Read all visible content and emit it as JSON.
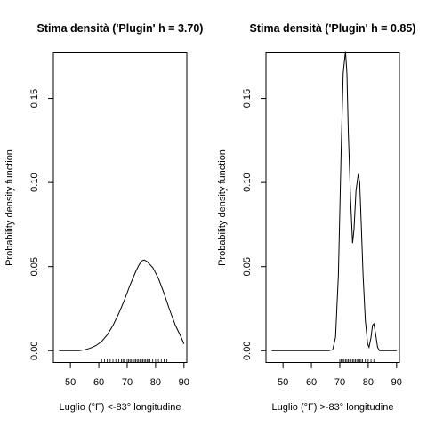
{
  "chart_data": [
    {
      "type": "line",
      "title": "Stima densità ('Plugin' h = 3.70)",
      "xlabel": "Luglio (°F) <-83° longitudine",
      "ylabel": "Probability density function",
      "xlim": [
        44,
        91
      ],
      "ylim": [
        -0.007,
        0.177
      ],
      "xticks": [
        50,
        60,
        70,
        80,
        90
      ],
      "xtick_labels": [
        "50",
        "60",
        "70",
        "80",
        "90"
      ],
      "yticks": [
        0.0,
        0.05,
        0.1,
        0.15
      ],
      "ytick_labels": [
        "0.00",
        "0.05",
        "0.10",
        "0.15"
      ],
      "grid": false,
      "series": [
        {
          "x": [
            46,
            50,
            53,
            55,
            57,
            59,
            61,
            63,
            65,
            67,
            69,
            71,
            73,
            74,
            75,
            76,
            77,
            79,
            81,
            83,
            85,
            87,
            89,
            90
          ],
          "y": [
            0.0,
            0.0,
            0.0,
            0.0005,
            0.0015,
            0.003,
            0.0055,
            0.0095,
            0.015,
            0.022,
            0.03,
            0.039,
            0.047,
            0.0505,
            0.0533,
            0.054,
            0.053,
            0.0495,
            0.043,
            0.034,
            0.024,
            0.015,
            0.008,
            0.004
          ]
        }
      ],
      "rug": [
        61,
        62,
        63,
        64,
        65,
        66,
        67,
        68,
        68.5,
        69,
        70,
        70.5,
        71,
        71.5,
        72,
        72.5,
        73,
        73.5,
        74,
        74.5,
        75,
        75.5,
        76,
        76.5,
        77,
        77.5,
        78,
        79,
        80,
        81,
        82,
        83,
        84
      ]
    },
    {
      "type": "line",
      "title": "Stima densità ('Plugin' h = 0.85)",
      "xlabel": "Luglio (°F) >-83° longitudine",
      "ylabel": "Probability density function",
      "xlim": [
        44,
        91
      ],
      "ylim": [
        -0.007,
        0.177
      ],
      "xticks": [
        50,
        60,
        70,
        80,
        90
      ],
      "xtick_labels": [
        "50",
        "60",
        "70",
        "80",
        "90"
      ],
      "yticks": [
        0.0,
        0.05,
        0.1,
        0.15
      ],
      "ytick_labels": [
        "0.00",
        "0.05",
        "0.10",
        "0.15"
      ],
      "grid": false,
      "series": [
        {
          "x": [
            46,
            60,
            66,
            67.5,
            68.5,
            69.5,
            70.5,
            71.2,
            72,
            72.5,
            73,
            73.8,
            74.5,
            75,
            75.7,
            76.5,
            77,
            77.5,
            78.2,
            79,
            79.8,
            80.3,
            81,
            81.5,
            82,
            82.6,
            83.3,
            84,
            86,
            90
          ],
          "y": [
            0.0,
            0.0,
            0.0,
            0.0005,
            0.008,
            0.045,
            0.12,
            0.165,
            0.178,
            0.165,
            0.13,
            0.09,
            0.064,
            0.072,
            0.095,
            0.105,
            0.1,
            0.078,
            0.045,
            0.018,
            0.004,
            0.002,
            0.008,
            0.015,
            0.016,
            0.01,
            0.002,
            0.0,
            0.0,
            0.0
          ]
        }
      ],
      "rug": [
        70,
        70.5,
        71,
        71.5,
        72,
        72.5,
        73,
        73.5,
        74,
        74.5,
        75,
        75.5,
        76,
        76.5,
        77,
        77.5,
        78,
        79,
        80,
        81,
        82
      ]
    }
  ]
}
